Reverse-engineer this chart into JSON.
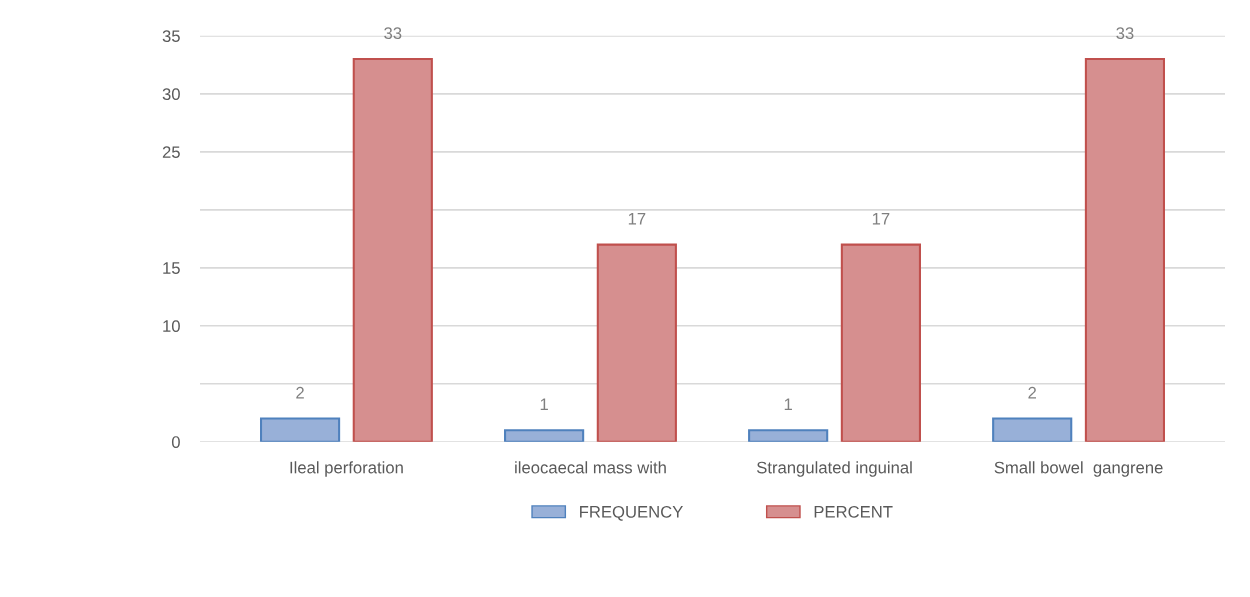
{
  "chart_data": {
    "type": "bar",
    "categories": [
      "Ileal perforation",
      "ileocaecal mass with",
      "Strangulated inguinal",
      "Small bowel  gangrene"
    ],
    "series": [
      {
        "name": "FREQUENCY",
        "color": "#98b0d8",
        "values": [
          2,
          1,
          1,
          2
        ]
      },
      {
        "name": "PERCENT",
        "color": "#d68f8f",
        "values": [
          33,
          17,
          17,
          33
        ]
      }
    ],
    "ylim": [
      0,
      35
    ],
    "yticks": [
      0,
      {
        "value": 5,
        "label": null
      },
      10,
      15,
      {
        "value": 20,
        "label": null
      },
      25,
      30,
      35
    ],
    "grid": "y",
    "legend": "bottom",
    "data_labels": true
  }
}
